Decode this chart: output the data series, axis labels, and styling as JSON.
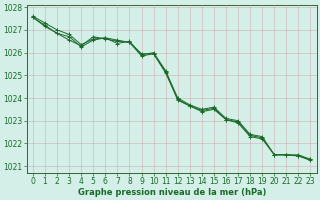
{
  "title": "Graphe pression niveau de la mer (hPa)",
  "bg_color": "#d4eee8",
  "grid_color": "#cc9999",
  "line_color": "#1a6b2a",
  "spine_color": "#336633",
  "xlim": [
    -0.5,
    23.5
  ],
  "ylim": [
    1020.7,
    1028.1
  ],
  "yticks": [
    1021,
    1022,
    1023,
    1024,
    1025,
    1026,
    1027,
    1028
  ],
  "xticks": [
    0,
    1,
    2,
    3,
    4,
    5,
    6,
    7,
    8,
    9,
    10,
    11,
    12,
    13,
    14,
    15,
    16,
    17,
    18,
    19,
    20,
    21,
    22,
    23
  ],
  "series": [
    [
      1027.6,
      1027.3,
      1027.0,
      1026.8,
      1026.35,
      1026.6,
      1026.65,
      1026.4,
      1026.5,
      1025.9,
      1026.0,
      1025.2,
      1024.0,
      1023.7,
      1023.5,
      1023.6,
      1023.1,
      1023.0,
      1022.4,
      1022.3,
      1021.5,
      1021.5,
      1021.5,
      1021.3
    ],
    [
      1027.55,
      1027.2,
      1026.85,
      1026.55,
      1026.3,
      1026.7,
      1026.6,
      1026.5,
      1026.45,
      1025.85,
      1025.95,
      1025.15,
      1023.9,
      1023.65,
      1023.4,
      1023.5,
      1023.05,
      1022.9,
      1022.3,
      1022.2,
      1021.5,
      1021.5,
      1021.45,
      1021.25
    ],
    [
      1027.55,
      1027.15,
      1026.85,
      1026.7,
      1026.25,
      1026.55,
      1026.65,
      1026.55,
      1026.45,
      1025.95,
      1025.95,
      1025.1,
      1023.95,
      1023.65,
      1023.45,
      1023.55,
      1023.05,
      1022.95,
      1022.35,
      1022.25,
      1021.5,
      1021.5,
      1021.45,
      1021.3
    ]
  ],
  "tick_fontsize": 5.5,
  "xlabel_fontsize": 6.0,
  "figsize": [
    3.2,
    2.0
  ],
  "dpi": 100
}
